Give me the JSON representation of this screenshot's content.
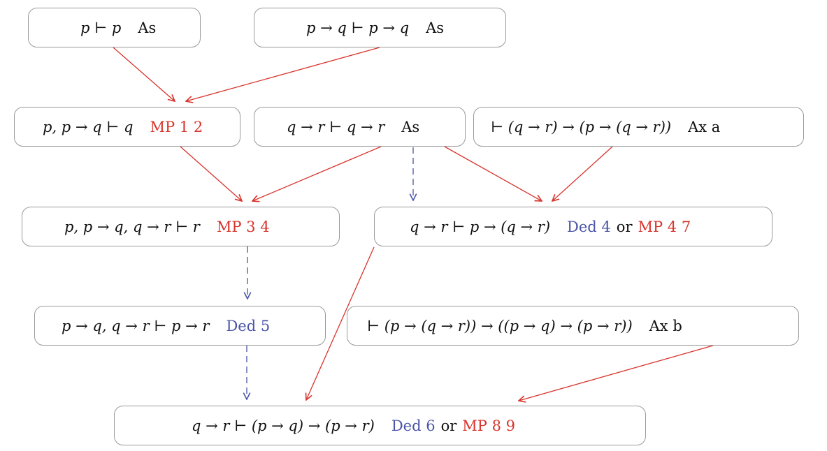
{
  "colors": {
    "mp": "#d8342c",
    "ded": "#4b55a8",
    "text": "#111111",
    "border": "#9a9a9a"
  },
  "nodes": [
    {
      "id": 1,
      "formula": "p ⊢ p",
      "just": "As"
    },
    {
      "id": 2,
      "formula": "p → q ⊢ p → q",
      "just": "As"
    },
    {
      "id": 3,
      "formula": "p, p → q ⊢ q",
      "just": "MP 1 2"
    },
    {
      "id": 4,
      "formula": "q → r ⊢ q → r",
      "just": "As"
    },
    {
      "id": 5,
      "formula": "⊢ (q → r) → (p → (q → r))",
      "just": "Ax a"
    },
    {
      "id": 6,
      "formula": "p, p → q, q → r ⊢ r",
      "just": "MP 3 4"
    },
    {
      "id": 7,
      "formula": "q → r ⊢ p → (q → r)",
      "just_ded": "Ded 4",
      "or": "or",
      "just_mp": "MP 4 7"
    },
    {
      "id": 8,
      "formula": "p → q, q → r ⊢ p → r",
      "just": "Ded 5"
    },
    {
      "id": 9,
      "formula": "⊢ (p → (q → r)) → ((p → q) → (p → r))",
      "just": "Ax b"
    },
    {
      "id": 10,
      "formula": "q → r ⊢ (p → q) → (p → r)",
      "just_ded": "Ded 6",
      "or": "or",
      "just_mp": "MP 8 9"
    }
  ],
  "edges": [
    {
      "from": 1,
      "to": 3,
      "kind": "mp"
    },
    {
      "from": 2,
      "to": 3,
      "kind": "mp"
    },
    {
      "from": 3,
      "to": 6,
      "kind": "mp"
    },
    {
      "from": 4,
      "to": 6,
      "kind": "mp"
    },
    {
      "from": 4,
      "to": 7,
      "kind": "ded"
    },
    {
      "from": 4,
      "to": 7,
      "kind": "mp"
    },
    {
      "from": 5,
      "to": 7,
      "kind": "mp"
    },
    {
      "from": 6,
      "to": 8,
      "kind": "ded"
    },
    {
      "from": 8,
      "to": 10,
      "kind": "ded"
    },
    {
      "from": 7,
      "to": 10,
      "kind": "mp"
    },
    {
      "from": 9,
      "to": 10,
      "kind": "mp"
    }
  ]
}
